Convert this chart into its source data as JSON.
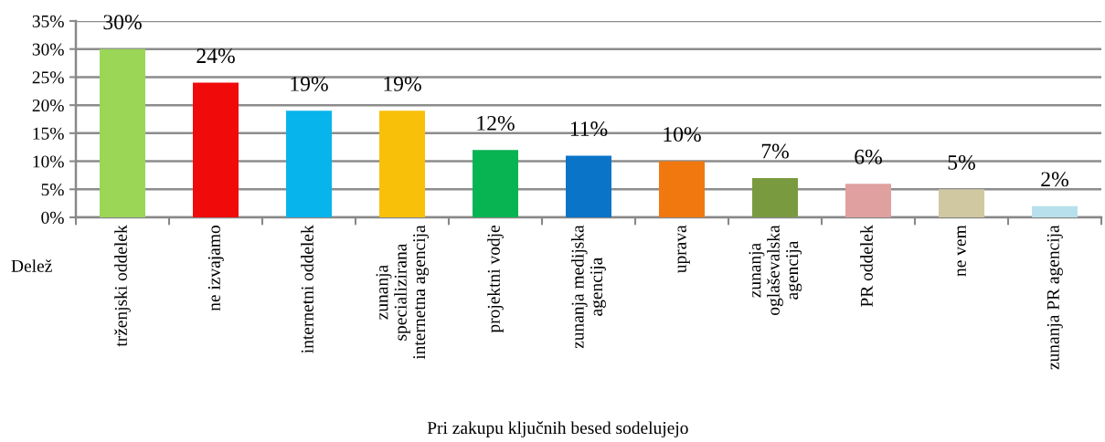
{
  "chart_data": {
    "type": "bar",
    "xlabel": "Pri zakupu ključnih besed sodelujejo",
    "annotations": [
      "Delež"
    ],
    "categories": [
      "trženjski oddelek",
      "ne izvajamo",
      "internetni oddelek",
      "zunanja\nspecializirana\ninternetna agencija",
      "projektni vodje",
      "zunanja medijska\nagencija",
      "uprava",
      "zunanja\noglaševalska\nagencija",
      "PR oddelek",
      "ne vem",
      "zunanja PR agencija"
    ],
    "values": [
      30,
      24,
      19,
      19,
      12,
      11,
      10,
      7,
      6,
      5,
      2
    ],
    "colors": [
      "#9bd656",
      "#f00a0a",
      "#08b4ec",
      "#f8c008",
      "#08b452",
      "#0a74c8",
      "#f0780e",
      "#7a9a40",
      "#e0a0a0",
      "#d0c8a0",
      "#b8e0ec"
    ],
    "value_labels": [
      "30%",
      "24%",
      "19%",
      "19%",
      "12%",
      "11%",
      "10%",
      "7%",
      "6%",
      "5%",
      "2%"
    ],
    "ylim": [
      0,
      35
    ],
    "yticks": [
      {
        "value": 0,
        "label": "0%"
      },
      {
        "value": 5,
        "label": "5%"
      },
      {
        "value": 10,
        "label": "10%"
      },
      {
        "value": 15,
        "label": "15%"
      },
      {
        "value": 20,
        "label": "20%"
      },
      {
        "value": 25,
        "label": "25%"
      },
      {
        "value": 30,
        "label": "30%"
      },
      {
        "value": 35,
        "label": "35%"
      }
    ],
    "grid": "y"
  }
}
